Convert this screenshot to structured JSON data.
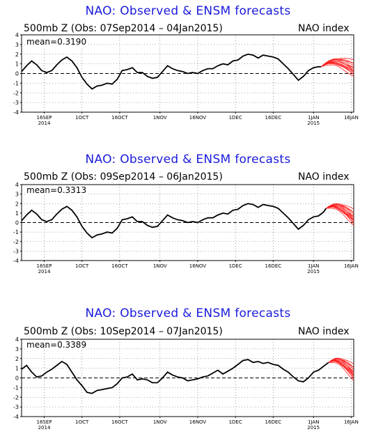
{
  "chart_data": [
    {
      "type": "line",
      "title": "NAO: Observed & ENSM forecasts",
      "subtitle": "500mb Z (Obs: 07Sep2014 – 04Jan2015)",
      "index_label": "NAO index",
      "mean_label": "mean=0.3190",
      "ylim": [
        -4,
        4
      ],
      "yticks": [
        -4,
        -3,
        -2,
        -1,
        0,
        1,
        2,
        3,
        4
      ],
      "xlim": [
        0,
        132
      ],
      "x_tick_labels": [
        {
          "x": 9,
          "label": "16SEP",
          "sub": "2014"
        },
        {
          "x": 24,
          "label": "1OCT",
          "sub": ""
        },
        {
          "x": 39,
          "label": "16OCT",
          "sub": ""
        },
        {
          "x": 55,
          "label": "1NOV",
          "sub": ""
        },
        {
          "x": 70,
          "label": "16NOV",
          "sub": ""
        },
        {
          "x": 85,
          "label": "1DEC",
          "sub": ""
        },
        {
          "x": 100,
          "label": "16DEC",
          "sub": ""
        },
        {
          "x": 116,
          "label": "1JAN",
          "sub": "2015"
        },
        {
          "x": 131,
          "label": "16JAN",
          "sub": ""
        }
      ],
      "grid": true,
      "series": [
        {
          "color": "#000000",
          "x": [
            0,
            2,
            4,
            6,
            8,
            10,
            12,
            14,
            16,
            18,
            20,
            22,
            24,
            26,
            28,
            30,
            32,
            34,
            36,
            38,
            40,
            42,
            44,
            46,
            48,
            50,
            52,
            54,
            56,
            58,
            60,
            62,
            64,
            66,
            68,
            70,
            72,
            74,
            76,
            78,
            80,
            82,
            84,
            86,
            88,
            90,
            92,
            94,
            96,
            98,
            100,
            102,
            104,
            106,
            108,
            110,
            112,
            114,
            116,
            118,
            119
          ],
          "y": [
            0.2,
            0.8,
            1.3,
            0.9,
            0.3,
            0.1,
            0.3,
            0.9,
            1.4,
            1.7,
            1.3,
            0.6,
            -0.4,
            -1.1,
            -1.6,
            -1.3,
            -1.2,
            -1.0,
            -1.1,
            -0.6,
            0.3,
            0.4,
            0.6,
            0.1,
            0.1,
            -0.3,
            -0.5,
            -0.4,
            0.2,
            0.8,
            0.5,
            0.3,
            0.2,
            0.0,
            0.1,
            0.0,
            0.3,
            0.5,
            0.5,
            0.8,
            1.0,
            0.9,
            1.3,
            1.4,
            1.8,
            2.0,
            1.9,
            1.6,
            1.9,
            1.8,
            1.7,
            1.5,
            1.0,
            0.5,
            -0.1,
            -0.7,
            -0.3,
            0.3,
            0.6,
            0.7,
            0.7
          ]
        }
      ],
      "ensemble": {
        "color": "#ff2020",
        "x0": 119,
        "end_x": 132,
        "shift": 0.0
      }
    },
    {
      "type": "line",
      "title": "NAO: Observed & ENSM forecasts",
      "subtitle": "500mb Z (Obs: 09Sep2014 – 06Jan2015)",
      "index_label": "NAO index",
      "mean_label": "mean=0.3313",
      "ylim": [
        -4,
        4
      ],
      "yticks": [
        -4,
        -3,
        -2,
        -1,
        0,
        1,
        2,
        3,
        4
      ],
      "xlim": [
        0,
        132
      ],
      "x_tick_labels": [
        {
          "x": 9,
          "label": "16SEP",
          "sub": "2014"
        },
        {
          "x": 24,
          "label": "1OCT",
          "sub": ""
        },
        {
          "x": 39,
          "label": "16OCT",
          "sub": ""
        },
        {
          "x": 55,
          "label": "1NOV",
          "sub": ""
        },
        {
          "x": 70,
          "label": "16NOV",
          "sub": ""
        },
        {
          "x": 85,
          "label": "1DEC",
          "sub": ""
        },
        {
          "x": 100,
          "label": "16DEC",
          "sub": ""
        },
        {
          "x": 116,
          "label": "1JAN",
          "sub": "2015"
        },
        {
          "x": 131,
          "label": "16JAN",
          "sub": ""
        }
      ],
      "grid": true,
      "series": [
        {
          "color": "#000000",
          "x": [
            0,
            2,
            4,
            6,
            8,
            10,
            12,
            14,
            16,
            18,
            20,
            22,
            24,
            26,
            28,
            30,
            32,
            34,
            36,
            38,
            40,
            42,
            44,
            46,
            48,
            50,
            52,
            54,
            56,
            58,
            60,
            62,
            64,
            66,
            68,
            70,
            72,
            74,
            76,
            78,
            80,
            82,
            84,
            86,
            88,
            90,
            92,
            94,
            96,
            98,
            100,
            102,
            104,
            106,
            108,
            110,
            112,
            114,
            116,
            118,
            120,
            121
          ],
          "y": [
            0.2,
            0.8,
            1.3,
            0.9,
            0.3,
            0.1,
            0.3,
            0.9,
            1.4,
            1.7,
            1.3,
            0.6,
            -0.4,
            -1.1,
            -1.6,
            -1.3,
            -1.2,
            -1.0,
            -1.1,
            -0.6,
            0.3,
            0.4,
            0.6,
            0.1,
            0.1,
            -0.3,
            -0.5,
            -0.4,
            0.2,
            0.8,
            0.5,
            0.3,
            0.2,
            0.0,
            0.1,
            0.0,
            0.3,
            0.5,
            0.5,
            0.8,
            1.0,
            0.9,
            1.3,
            1.4,
            1.8,
            2.0,
            1.9,
            1.6,
            1.9,
            1.8,
            1.7,
            1.5,
            1.0,
            0.5,
            -0.1,
            -0.7,
            -0.3,
            0.3,
            0.6,
            0.7,
            1.1,
            1.5
          ]
        }
      ],
      "ensemble": {
        "color": "#ff2020",
        "x0": 121,
        "end_x": 132,
        "shift": 0.0
      }
    },
    {
      "type": "line",
      "title": "NAO: Observed & ENSM forecasts",
      "subtitle": "500mb Z (Obs: 10Sep2014 – 07Jan2015)",
      "index_label": "NAO index",
      "mean_label": "mean=0.3389",
      "ylim": [
        -4,
        4
      ],
      "yticks": [
        -4,
        -3,
        -2,
        -1,
        0,
        1,
        2,
        3,
        4
      ],
      "xlim": [
        0,
        132
      ],
      "x_tick_labels": [
        {
          "x": 9,
          "label": "16SEP",
          "sub": "2014"
        },
        {
          "x": 24,
          "label": "1OCT",
          "sub": ""
        },
        {
          "x": 39,
          "label": "16OCT",
          "sub": ""
        },
        {
          "x": 55,
          "label": "1NOV",
          "sub": ""
        },
        {
          "x": 70,
          "label": "16NOV",
          "sub": ""
        },
        {
          "x": 85,
          "label": "1DEC",
          "sub": ""
        },
        {
          "x": 100,
          "label": "16DEC",
          "sub": ""
        },
        {
          "x": 116,
          "label": "1JAN",
          "sub": "2015"
        },
        {
          "x": 131,
          "label": "16JAN",
          "sub": ""
        }
      ],
      "grid": true,
      "series": [
        {
          "color": "#000000",
          "x": [
            0,
            2,
            4,
            6,
            8,
            10,
            12,
            14,
            16,
            18,
            20,
            22,
            24,
            26,
            28,
            30,
            32,
            34,
            36,
            38,
            40,
            42,
            44,
            46,
            48,
            50,
            52,
            54,
            56,
            58,
            60,
            62,
            64,
            66,
            68,
            70,
            72,
            74,
            76,
            78,
            80,
            82,
            84,
            86,
            88,
            90,
            92,
            94,
            96,
            98,
            100,
            102,
            104,
            106,
            108,
            110,
            112,
            114,
            116,
            118,
            120,
            122
          ],
          "y": [
            0.9,
            1.3,
            0.6,
            0.1,
            0.2,
            0.6,
            0.9,
            1.3,
            1.7,
            1.4,
            0.6,
            -0.2,
            -0.8,
            -1.5,
            -1.6,
            -1.3,
            -1.2,
            -1.1,
            -1.0,
            -0.6,
            0.0,
            0.1,
            0.4,
            -0.2,
            -0.1,
            -0.2,
            -0.5,
            -0.5,
            0.0,
            0.6,
            0.3,
            0.1,
            0.0,
            -0.3,
            -0.2,
            -0.1,
            0.1,
            0.2,
            0.5,
            0.8,
            0.4,
            0.7,
            1.0,
            1.4,
            1.8,
            1.9,
            1.6,
            1.7,
            1.5,
            1.6,
            1.4,
            1.3,
            0.9,
            0.6,
            0.1,
            -0.3,
            -0.4,
            0.0,
            0.6,
            0.8,
            1.2,
            1.6
          ]
        }
      ],
      "ensemble": {
        "color": "#ff2020",
        "x0": 122,
        "end_x": 132,
        "shift": 0.0
      }
    }
  ]
}
